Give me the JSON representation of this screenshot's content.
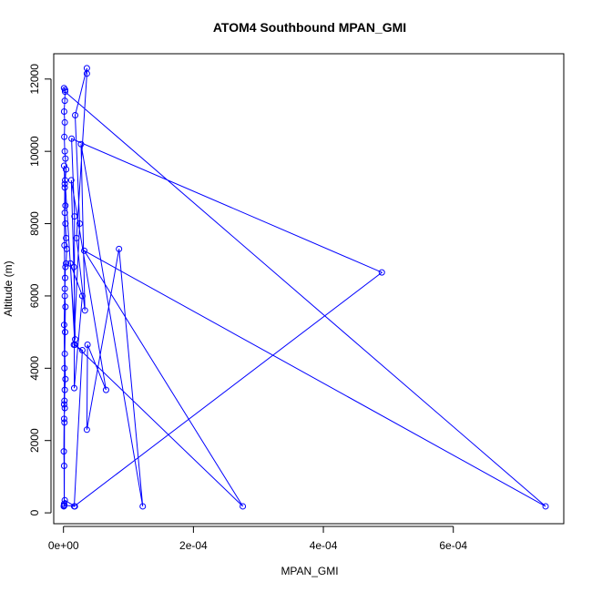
{
  "chart_data": {
    "type": "line",
    "title": "ATOM4 Southbound MPAN_GMI",
    "xlabel": "MPAN_GMI",
    "ylabel": "Altitude (m)",
    "xlim": [
      -1.5e-05,
      0.00077
    ],
    "ylim": [
      -300,
      12700
    ],
    "x_ticks": [
      0,
      0.0002,
      0.0004,
      0.0006
    ],
    "x_tick_labels": [
      "0e+00",
      "2e-04",
      "4e-04",
      "6e-04"
    ],
    "y_ticks": [
      0,
      2000,
      4000,
      6000,
      8000,
      10000,
      12000
    ],
    "y_tick_labels": [
      "0",
      "2000",
      "4000",
      "6000",
      "8000",
      "10000",
      "12000"
    ],
    "grid": false,
    "marker": "open-circle",
    "line_color": "#0000ff",
    "series": [
      {
        "points": [
          [
            5e-07,
            180
          ],
          [
            8e-07,
            200
          ],
          [
            1e-06,
            250
          ],
          [
            2e-06,
            350
          ],
          [
            1.75e-05,
            180
          ],
          [
            1.15e-06,
            210
          ],
          [
            1e-06,
            1300
          ],
          [
            5e-07,
            1700
          ],
          [
            1e-06,
            2600
          ],
          [
            2e-06,
            2900
          ],
          [
            1.5e-06,
            3100
          ],
          [
            2e-06,
            3400
          ],
          [
            3e-06,
            3700
          ],
          [
            2e-06,
            4400
          ],
          [
            2.5e-06,
            5000
          ],
          [
            3e-06,
            5700
          ],
          [
            2e-06,
            6000
          ],
          [
            2.5e-06,
            6500
          ],
          [
            3e-06,
            6800
          ],
          [
            4e-06,
            6900
          ],
          [
            5e-06,
            7300
          ],
          [
            4e-06,
            7600
          ],
          [
            3e-06,
            8000
          ],
          [
            2e-06,
            8300
          ],
          [
            3e-06,
            8500
          ],
          [
            2e-06,
            9000
          ],
          [
            2.5e-06,
            9200
          ],
          [
            4e-06,
            9500
          ],
          [
            3e-06,
            9800
          ],
          [
            2e-06,
            10000
          ],
          [
            1.25e-06,
            10400
          ],
          [
            2e-06,
            10800
          ],
          [
            1e-06,
            11100
          ],
          [
            2e-06,
            11400
          ],
          [
            2.5e-06,
            11700
          ],
          [
            8.5e-07,
            11750
          ],
          [
            2.45e-06,
            11650
          ],
          [
            0.000742,
            180
          ],
          [
            3.2e-05,
            7250
          ],
          [
            0.000276,
            180
          ],
          [
            1.75e-05,
            4650
          ],
          [
            1.05e-05,
            6900
          ],
          [
            2.9e-05,
            6000
          ],
          [
            1.65e-05,
            3450
          ],
          [
            1.7e-05,
            8200
          ],
          [
            1.25e-05,
            10350
          ],
          [
            0.00049,
            6650
          ],
          [
            1.65e-05,
            180
          ],
          [
            2.9e-05,
            4500
          ],
          [
            1.6e-05,
            4650
          ],
          [
            2.5e-05,
            8000
          ],
          [
            1.8e-05,
            11000
          ],
          [
            3.6e-05,
            12300
          ],
          [
            3.6e-05,
            12150
          ],
          [
            2e-05,
            7600
          ],
          [
            3.3e-05,
            5600
          ],
          [
            2.7e-05,
            10200
          ],
          [
            0.000122,
            180
          ],
          [
            8.55e-05,
            7300
          ],
          [
            3.6e-05,
            2300
          ],
          [
            3.7e-05,
            4650
          ],
          [
            6.55e-05,
            3400
          ],
          [
            1.2e-05,
            9200
          ],
          [
            1.6e-05,
            6800
          ],
          [
            1.8e-05,
            4800
          ],
          [
            1e-06,
            9600
          ],
          [
            2e-06,
            9100
          ],
          [
            1.5e-06,
            7400
          ],
          [
            2e-06,
            6200
          ],
          [
            1e-06,
            5200
          ],
          [
            1.5e-06,
            4000
          ],
          [
            1e-06,
            3000
          ],
          [
            1.5e-06,
            2500
          ],
          [
            1.2e-06,
            200
          ]
        ]
      }
    ]
  }
}
